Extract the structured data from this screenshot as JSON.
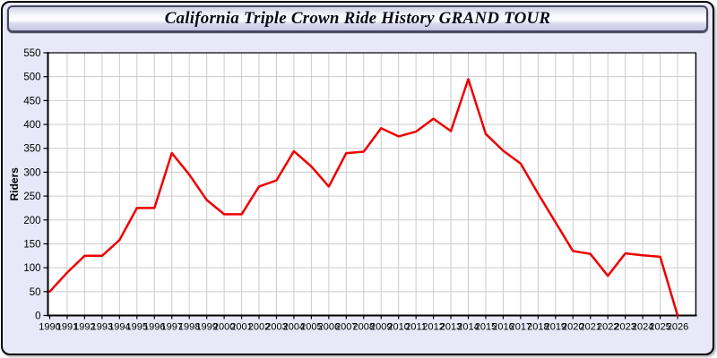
{
  "title": "California Triple Crown Ride History GRAND TOUR",
  "colors": {
    "line": "#ee0000",
    "window_bg": "#e8e8f8",
    "plot_bg": "#ffffff",
    "grid": "#cccccc",
    "axis": "#000000",
    "tick_label": "#000000"
  },
  "chart_data": {
    "type": "line",
    "title": "California Triple Crown Ride History GRAND TOUR",
    "xlabel": "",
    "ylabel": "Riders",
    "ylim": [
      0,
      550
    ],
    "ytick_step": 50,
    "yticks": [
      0,
      50,
      100,
      150,
      200,
      250,
      300,
      350,
      400,
      450,
      500,
      550
    ],
    "grid": true,
    "legend_position": "none",
    "categories": [
      1990,
      1991,
      1992,
      1993,
      1994,
      1995,
      1996,
      1997,
      1998,
      1999,
      2000,
      2001,
      2002,
      2003,
      2004,
      2005,
      2006,
      2007,
      2008,
      2009,
      2010,
      2011,
      2012,
      2013,
      2014,
      2015,
      2016,
      2017,
      2018,
      2019,
      2020,
      2021,
      2022,
      2023,
      2024,
      2025,
      2026
    ],
    "series": [
      {
        "name": "Riders",
        "color": "#ee0000",
        "x": [
          1990,
          1991,
          1992,
          1993,
          1994,
          1995,
          1996,
          1997,
          1998,
          1999,
          2000,
          2001,
          2002,
          2003,
          2004,
          2005,
          2006,
          2007,
          2008,
          2009,
          2010,
          2011,
          2012,
          2013,
          2014,
          2015,
          2016,
          2017,
          2018,
          2019,
          2020,
          2021,
          2022,
          2023,
          2024,
          2025,
          2026
        ],
        "values": [
          50,
          90,
          125,
          125,
          158,
          225,
          225,
          340,
          295,
          242,
          212,
          212,
          270,
          283,
          344,
          312,
          270,
          340,
          343,
          392,
          375,
          385,
          412,
          386,
          495,
          380,
          345,
          318,
          255,
          195,
          135,
          129,
          83,
          130,
          126,
          123,
          0
        ]
      }
    ]
  }
}
